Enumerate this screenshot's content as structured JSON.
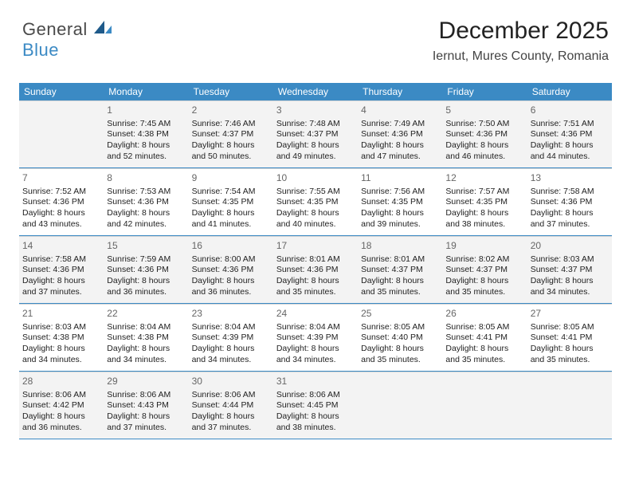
{
  "logo": {
    "general": "General",
    "blue": "Blue"
  },
  "header": {
    "title": "December 2025",
    "subtitle": "Iernut, Mures County, Romania"
  },
  "colors": {
    "accent": "#3b8ac4",
    "shaded": "#f3f3f3",
    "text": "#222222",
    "grid": "#d6d6d6",
    "background": "#ffffff"
  },
  "fonts": {
    "title_size_pt": 22,
    "subtitle_size_pt": 12,
    "dayhead_size_pt": 9,
    "cell_size_pt": 8,
    "daynum_size_pt": 9
  },
  "calendar": {
    "day_labels": [
      "Sunday",
      "Monday",
      "Tuesday",
      "Wednesday",
      "Thursday",
      "Friday",
      "Saturday"
    ],
    "weeks": [
      [
        {
          "empty": true
        },
        {
          "n": "1",
          "sr": "7:45 AM",
          "ss": "4:38 PM",
          "d1": "Daylight: 8 hours",
          "d2": "and 52 minutes."
        },
        {
          "n": "2",
          "sr": "7:46 AM",
          "ss": "4:37 PM",
          "d1": "Daylight: 8 hours",
          "d2": "and 50 minutes."
        },
        {
          "n": "3",
          "sr": "7:48 AM",
          "ss": "4:37 PM",
          "d1": "Daylight: 8 hours",
          "d2": "and 49 minutes."
        },
        {
          "n": "4",
          "sr": "7:49 AM",
          "ss": "4:36 PM",
          "d1": "Daylight: 8 hours",
          "d2": "and 47 minutes."
        },
        {
          "n": "5",
          "sr": "7:50 AM",
          "ss": "4:36 PM",
          "d1": "Daylight: 8 hours",
          "d2": "and 46 minutes."
        },
        {
          "n": "6",
          "sr": "7:51 AM",
          "ss": "4:36 PM",
          "d1": "Daylight: 8 hours",
          "d2": "and 44 minutes."
        }
      ],
      [
        {
          "n": "7",
          "sr": "7:52 AM",
          "ss": "4:36 PM",
          "d1": "Daylight: 8 hours",
          "d2": "and 43 minutes."
        },
        {
          "n": "8",
          "sr": "7:53 AM",
          "ss": "4:36 PM",
          "d1": "Daylight: 8 hours",
          "d2": "and 42 minutes."
        },
        {
          "n": "9",
          "sr": "7:54 AM",
          "ss": "4:35 PM",
          "d1": "Daylight: 8 hours",
          "d2": "and 41 minutes."
        },
        {
          "n": "10",
          "sr": "7:55 AM",
          "ss": "4:35 PM",
          "d1": "Daylight: 8 hours",
          "d2": "and 40 minutes."
        },
        {
          "n": "11",
          "sr": "7:56 AM",
          "ss": "4:35 PM",
          "d1": "Daylight: 8 hours",
          "d2": "and 39 minutes."
        },
        {
          "n": "12",
          "sr": "7:57 AM",
          "ss": "4:35 PM",
          "d1": "Daylight: 8 hours",
          "d2": "and 38 minutes."
        },
        {
          "n": "13",
          "sr": "7:58 AM",
          "ss": "4:36 PM",
          "d1": "Daylight: 8 hours",
          "d2": "and 37 minutes."
        }
      ],
      [
        {
          "n": "14",
          "sr": "7:58 AM",
          "ss": "4:36 PM",
          "d1": "Daylight: 8 hours",
          "d2": "and 37 minutes."
        },
        {
          "n": "15",
          "sr": "7:59 AM",
          "ss": "4:36 PM",
          "d1": "Daylight: 8 hours",
          "d2": "and 36 minutes."
        },
        {
          "n": "16",
          "sr": "8:00 AM",
          "ss": "4:36 PM",
          "d1": "Daylight: 8 hours",
          "d2": "and 36 minutes."
        },
        {
          "n": "17",
          "sr": "8:01 AM",
          "ss": "4:36 PM",
          "d1": "Daylight: 8 hours",
          "d2": "and 35 minutes."
        },
        {
          "n": "18",
          "sr": "8:01 AM",
          "ss": "4:37 PM",
          "d1": "Daylight: 8 hours",
          "d2": "and 35 minutes."
        },
        {
          "n": "19",
          "sr": "8:02 AM",
          "ss": "4:37 PM",
          "d1": "Daylight: 8 hours",
          "d2": "and 35 minutes."
        },
        {
          "n": "20",
          "sr": "8:03 AM",
          "ss": "4:37 PM",
          "d1": "Daylight: 8 hours",
          "d2": "and 34 minutes."
        }
      ],
      [
        {
          "n": "21",
          "sr": "8:03 AM",
          "ss": "4:38 PM",
          "d1": "Daylight: 8 hours",
          "d2": "and 34 minutes."
        },
        {
          "n": "22",
          "sr": "8:04 AM",
          "ss": "4:38 PM",
          "d1": "Daylight: 8 hours",
          "d2": "and 34 minutes."
        },
        {
          "n": "23",
          "sr": "8:04 AM",
          "ss": "4:39 PM",
          "d1": "Daylight: 8 hours",
          "d2": "and 34 minutes."
        },
        {
          "n": "24",
          "sr": "8:04 AM",
          "ss": "4:39 PM",
          "d1": "Daylight: 8 hours",
          "d2": "and 34 minutes."
        },
        {
          "n": "25",
          "sr": "8:05 AM",
          "ss": "4:40 PM",
          "d1": "Daylight: 8 hours",
          "d2": "and 35 minutes."
        },
        {
          "n": "26",
          "sr": "8:05 AM",
          "ss": "4:41 PM",
          "d1": "Daylight: 8 hours",
          "d2": "and 35 minutes."
        },
        {
          "n": "27",
          "sr": "8:05 AM",
          "ss": "4:41 PM",
          "d1": "Daylight: 8 hours",
          "d2": "and 35 minutes."
        }
      ],
      [
        {
          "n": "28",
          "sr": "8:06 AM",
          "ss": "4:42 PM",
          "d1": "Daylight: 8 hours",
          "d2": "and 36 minutes."
        },
        {
          "n": "29",
          "sr": "8:06 AM",
          "ss": "4:43 PM",
          "d1": "Daylight: 8 hours",
          "d2": "and 37 minutes."
        },
        {
          "n": "30",
          "sr": "8:06 AM",
          "ss": "4:44 PM",
          "d1": "Daylight: 8 hours",
          "d2": "and 37 minutes."
        },
        {
          "n": "31",
          "sr": "8:06 AM",
          "ss": "4:45 PM",
          "d1": "Daylight: 8 hours",
          "d2": "and 38 minutes."
        },
        {
          "empty": true
        },
        {
          "empty": true
        },
        {
          "empty": true
        }
      ]
    ]
  }
}
